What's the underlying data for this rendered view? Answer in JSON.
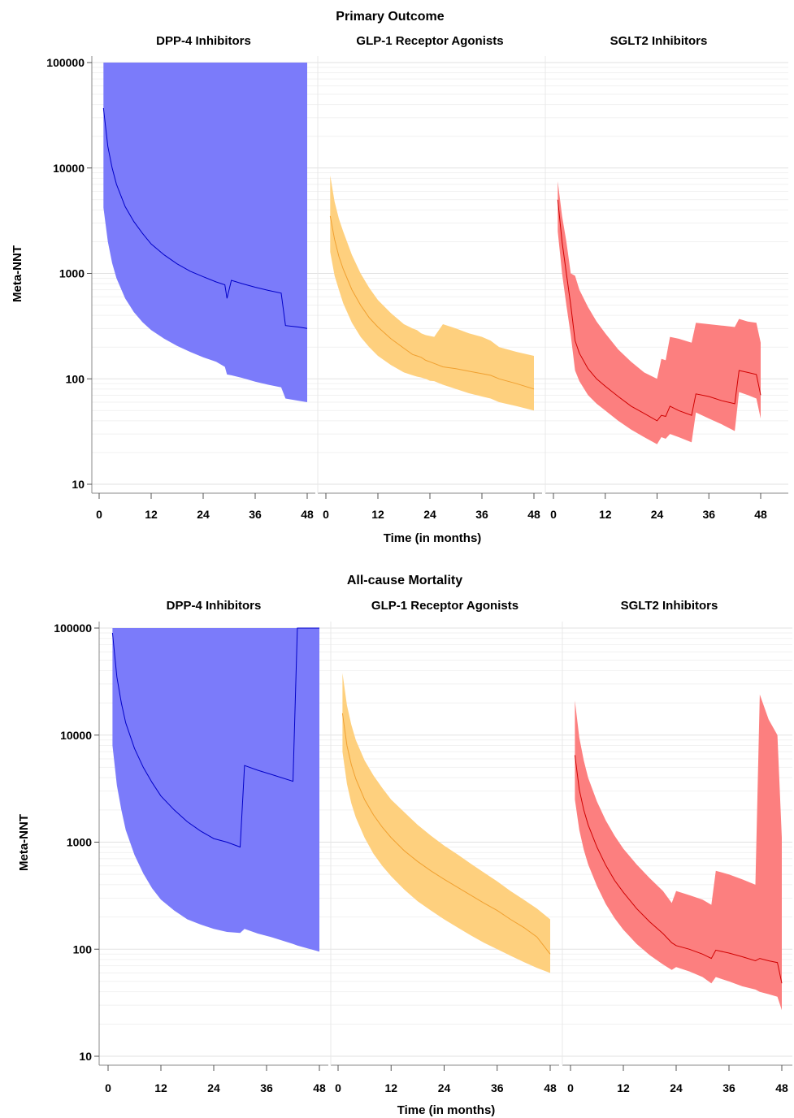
{
  "chart_data": [
    {
      "type": "area",
      "title": "Primary Outcome",
      "xlabel": "Time (in months)",
      "ylabel": "Meta-NNT",
      "yscale": "log",
      "ylim": [
        10,
        100000
      ],
      "xlim": [
        0,
        48
      ],
      "yticks": [
        10,
        100,
        1000,
        10000,
        100000
      ],
      "yticklabels": [
        "10",
        "100",
        "1000",
        "10000",
        "100000"
      ],
      "xticks": [
        0,
        12,
        24,
        36,
        48
      ],
      "xticklabels": [
        "0",
        "12",
        "24",
        "36",
        "48"
      ],
      "grid": "horizontal",
      "panels": [
        {
          "title": "DPP-4 Inhibitors",
          "fill_color": "#7b7bfa",
          "line_color": "#0000c8",
          "x": [
            1,
            2,
            3,
            4,
            6,
            8,
            10,
            12,
            15,
            18,
            21,
            24,
            27,
            29,
            29.5,
            30.5,
            33,
            36,
            39,
            42,
            43,
            46,
            48
          ],
          "y": [
            37000,
            16000,
            10000,
            7000,
            4300,
            3100,
            2400,
            1900,
            1500,
            1230,
            1050,
            930,
            830,
            780,
            580,
            860,
            800,
            740,
            690,
            650,
            320,
            310,
            300
          ],
          "lower": [
            4200,
            2000,
            1250,
            900,
            580,
            430,
            345,
            290,
            240,
            205,
            180,
            160,
            145,
            130,
            110,
            108,
            102,
            94,
            88,
            83,
            65,
            62,
            60
          ],
          "upper": [
            100000,
            100000,
            100000,
            100000,
            100000,
            100000,
            100000,
            100000,
            100000,
            100000,
            100000,
            100000,
            100000,
            100000,
            100000,
            100000,
            100000,
            100000,
            100000,
            100000,
            100000,
            100000,
            100000
          ]
        },
        {
          "title": "GLP-1 Receptor Agonists",
          "fill_color": "#fed07e",
          "line_color": "#f0a030",
          "x": [
            1,
            2,
            3,
            4,
            6,
            8,
            10,
            12,
            15,
            18,
            20,
            21,
            22,
            23,
            24,
            25,
            27,
            30,
            33,
            36,
            38,
            40,
            44,
            48
          ],
          "y": [
            3500,
            2100,
            1450,
            1100,
            700,
            500,
            380,
            310,
            240,
            195,
            170,
            165,
            160,
            150,
            145,
            140,
            130,
            125,
            118,
            112,
            108,
            100,
            90,
            80
          ],
          "lower": [
            1600,
            950,
            700,
            520,
            340,
            250,
            200,
            165,
            135,
            115,
            108,
            105,
            103,
            100,
            96,
            95,
            88,
            80,
            73,
            68,
            65,
            60,
            55,
            50
          ],
          "upper": [
            8500,
            4800,
            3300,
            2500,
            1500,
            1000,
            730,
            560,
            420,
            330,
            300,
            290,
            270,
            260,
            255,
            250,
            330,
            300,
            270,
            250,
            230,
            200,
            180,
            165
          ]
        },
        {
          "title": "SGLT2 Inhibitors",
          "fill_color": "#fc7f7f",
          "line_color": "#d00000",
          "x": [
            1,
            2,
            3,
            4,
            5,
            6,
            8,
            10,
            12,
            15,
            18,
            21,
            24,
            25,
            26,
            27,
            29,
            32,
            33,
            36,
            39,
            42,
            43,
            45,
            47,
            48
          ],
          "y": [
            5000,
            2000,
            1000,
            500,
            230,
            175,
            125,
            100,
            85,
            68,
            55,
            47,
            40,
            45,
            44,
            55,
            50,
            45,
            72,
            68,
            62,
            58,
            120,
            115,
            110,
            70
          ],
          "lower": [
            2500,
            1000,
            500,
            260,
            120,
            95,
            70,
            58,
            50,
            40,
            33,
            28,
            24,
            28,
            27,
            30,
            28,
            25,
            48,
            42,
            37,
            32,
            75,
            70,
            65,
            42
          ],
          "upper": [
            7500,
            3500,
            2000,
            1000,
            950,
            700,
            480,
            350,
            270,
            190,
            145,
            115,
            100,
            155,
            150,
            250,
            240,
            220,
            340,
            330,
            320,
            310,
            370,
            350,
            340,
            220
          ]
        }
      ]
    },
    {
      "type": "area",
      "title": "All-cause Mortality",
      "xlabel": "Time (in months)",
      "ylabel": "Meta-NNT",
      "yscale": "log",
      "ylim": [
        10,
        100000
      ],
      "xlim": [
        0,
        48
      ],
      "yticks": [
        10,
        100,
        1000,
        10000,
        100000
      ],
      "yticklabels": [
        "10",
        "100",
        "1000",
        "10000",
        "100000"
      ],
      "xticks": [
        0,
        12,
        24,
        36,
        48
      ],
      "xticklabels": [
        "0",
        "12",
        "24",
        "36",
        "48"
      ],
      "grid": "horizontal",
      "panels": [
        {
          "title": "DPP-4 Inhibitors",
          "fill_color": "#7b7bfa",
          "line_color": "#0000c8",
          "x": [
            1,
            2,
            3,
            4,
            6,
            8,
            10,
            12,
            15,
            18,
            21,
            24,
            27,
            30,
            31,
            34,
            37,
            42,
            43,
            48
          ],
          "y": [
            90000,
            35000,
            20000,
            13000,
            7500,
            5000,
            3600,
            2700,
            2000,
            1550,
            1270,
            1080,
            1000,
            900,
            5200,
            4700,
            4300,
            3700,
            100000,
            100000
          ],
          "lower": [
            8000,
            3400,
            2000,
            1300,
            760,
            510,
            370,
            290,
            230,
            190,
            170,
            155,
            145,
            142,
            155,
            140,
            130,
            112,
            108,
            95
          ],
          "upper": [
            100000,
            100000,
            100000,
            100000,
            100000,
            100000,
            100000,
            100000,
            100000,
            100000,
            100000,
            100000,
            100000,
            100000,
            100000,
            100000,
            100000,
            100000,
            100000,
            100000
          ]
        },
        {
          "title": "GLP-1 Receptor Agonists",
          "fill_color": "#fed07e",
          "line_color": "#f0a030",
          "x": [
            1,
            2,
            3,
            4,
            6,
            8,
            10,
            12,
            15,
            18,
            21,
            24,
            27,
            30,
            33,
            36,
            39,
            42,
            45,
            48
          ],
          "y": [
            16000,
            8000,
            5300,
            3900,
            2500,
            1800,
            1380,
            1100,
            830,
            660,
            540,
            450,
            380,
            320,
            270,
            230,
            190,
            160,
            130,
            90
          ],
          "lower": [
            7000,
            3500,
            2300,
            1700,
            1100,
            780,
            600,
            480,
            360,
            280,
            230,
            190,
            160,
            135,
            115,
            100,
            87,
            76,
            67,
            60
          ],
          "upper": [
            38000,
            19000,
            12500,
            9000,
            5800,
            4200,
            3200,
            2500,
            1900,
            1450,
            1150,
            930,
            770,
            630,
            520,
            430,
            350,
            290,
            240,
            190
          ]
        },
        {
          "title": "SGLT2 Inhibitors",
          "fill_color": "#fc7f7f",
          "line_color": "#d00000",
          "x": [
            1,
            2,
            3,
            4,
            6,
            8,
            10,
            12,
            15,
            18,
            21,
            23,
            24,
            27,
            30,
            32,
            33,
            36,
            39,
            42,
            43,
            45,
            47,
            48
          ],
          "y": [
            6500,
            3100,
            2000,
            1450,
            900,
            610,
            440,
            340,
            240,
            180,
            140,
            115,
            108,
            100,
            90,
            82,
            98,
            92,
            85,
            78,
            82,
            78,
            75,
            48
          ],
          "lower": [
            2500,
            1300,
            850,
            620,
            390,
            265,
            195,
            152,
            112,
            88,
            72,
            64,
            68,
            62,
            55,
            48,
            55,
            50,
            45,
            42,
            40,
            38,
            36,
            27
          ],
          "upper": [
            21000,
            9500,
            5800,
            4000,
            2400,
            1600,
            1150,
            870,
            620,
            460,
            350,
            270,
            350,
            320,
            290,
            260,
            540,
            500,
            450,
            400,
            24000,
            14000,
            10000,
            1100
          ]
        }
      ]
    }
  ]
}
